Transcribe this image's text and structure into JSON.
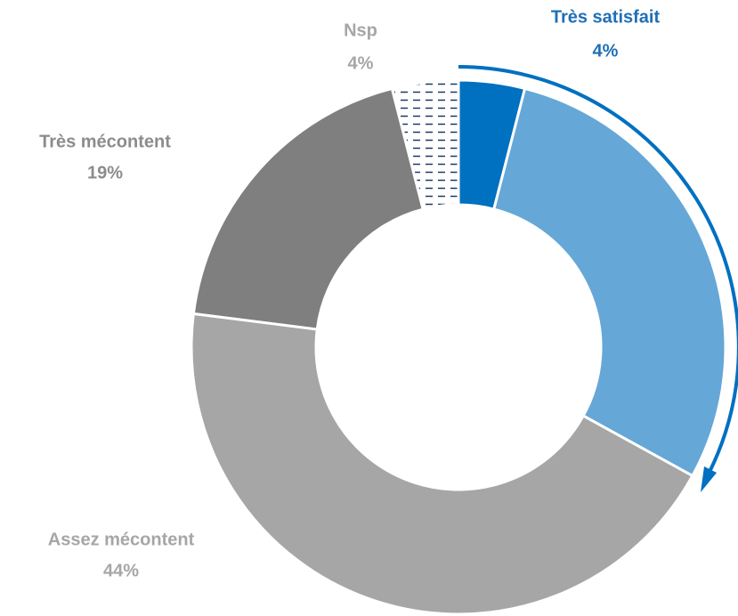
{
  "chart_data": {
    "type": "donut",
    "categories": [
      "Très satisfait",
      null,
      "Assez mécontent",
      "Très mécontent",
      "Nsp"
    ],
    "values": [
      4,
      29,
      44,
      19,
      4
    ],
    "value_labels": [
      "4%",
      null,
      "44%",
      "19%",
      "4%"
    ],
    "colors": [
      "#0070c0",
      "#65a7d7",
      "#a6a6a6",
      "#7f7f7f",
      "#1f3864"
    ],
    "patterns": [
      null,
      null,
      null,
      null,
      "dash"
    ]
  }
}
